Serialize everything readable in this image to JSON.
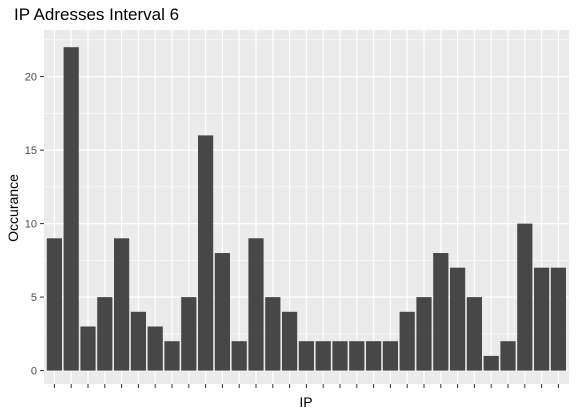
{
  "chart_data": {
    "type": "bar",
    "title": "IP Adresses Interval 6",
    "xlabel": "IP",
    "ylabel": "Occurance",
    "categories": [
      "",
      "",
      "",
      "",
      "",
      "",
      "",
      "",
      "",
      "",
      "",
      "",
      "",
      "",
      "",
      "",
      "",
      "",
      "",
      "",
      "",
      "",
      "",
      "",
      "",
      "",
      "",
      "",
      "",
      "",
      ""
    ],
    "values": [
      9,
      22,
      3,
      5,
      9,
      4,
      3,
      2,
      5,
      16,
      8,
      2,
      9,
      5,
      4,
      2,
      2,
      2,
      2,
      2,
      2,
      4,
      5,
      8,
      7,
      5,
      1,
      2,
      10,
      7,
      7
    ],
    "y_ticks": [
      0,
      5,
      10,
      15,
      20
    ],
    "ylim": [
      0,
      23
    ],
    "grid": true,
    "legend": "none",
    "bar_color": "#474747",
    "panel_color": "#ebebeb",
    "grid_color": "#ffffff"
  }
}
